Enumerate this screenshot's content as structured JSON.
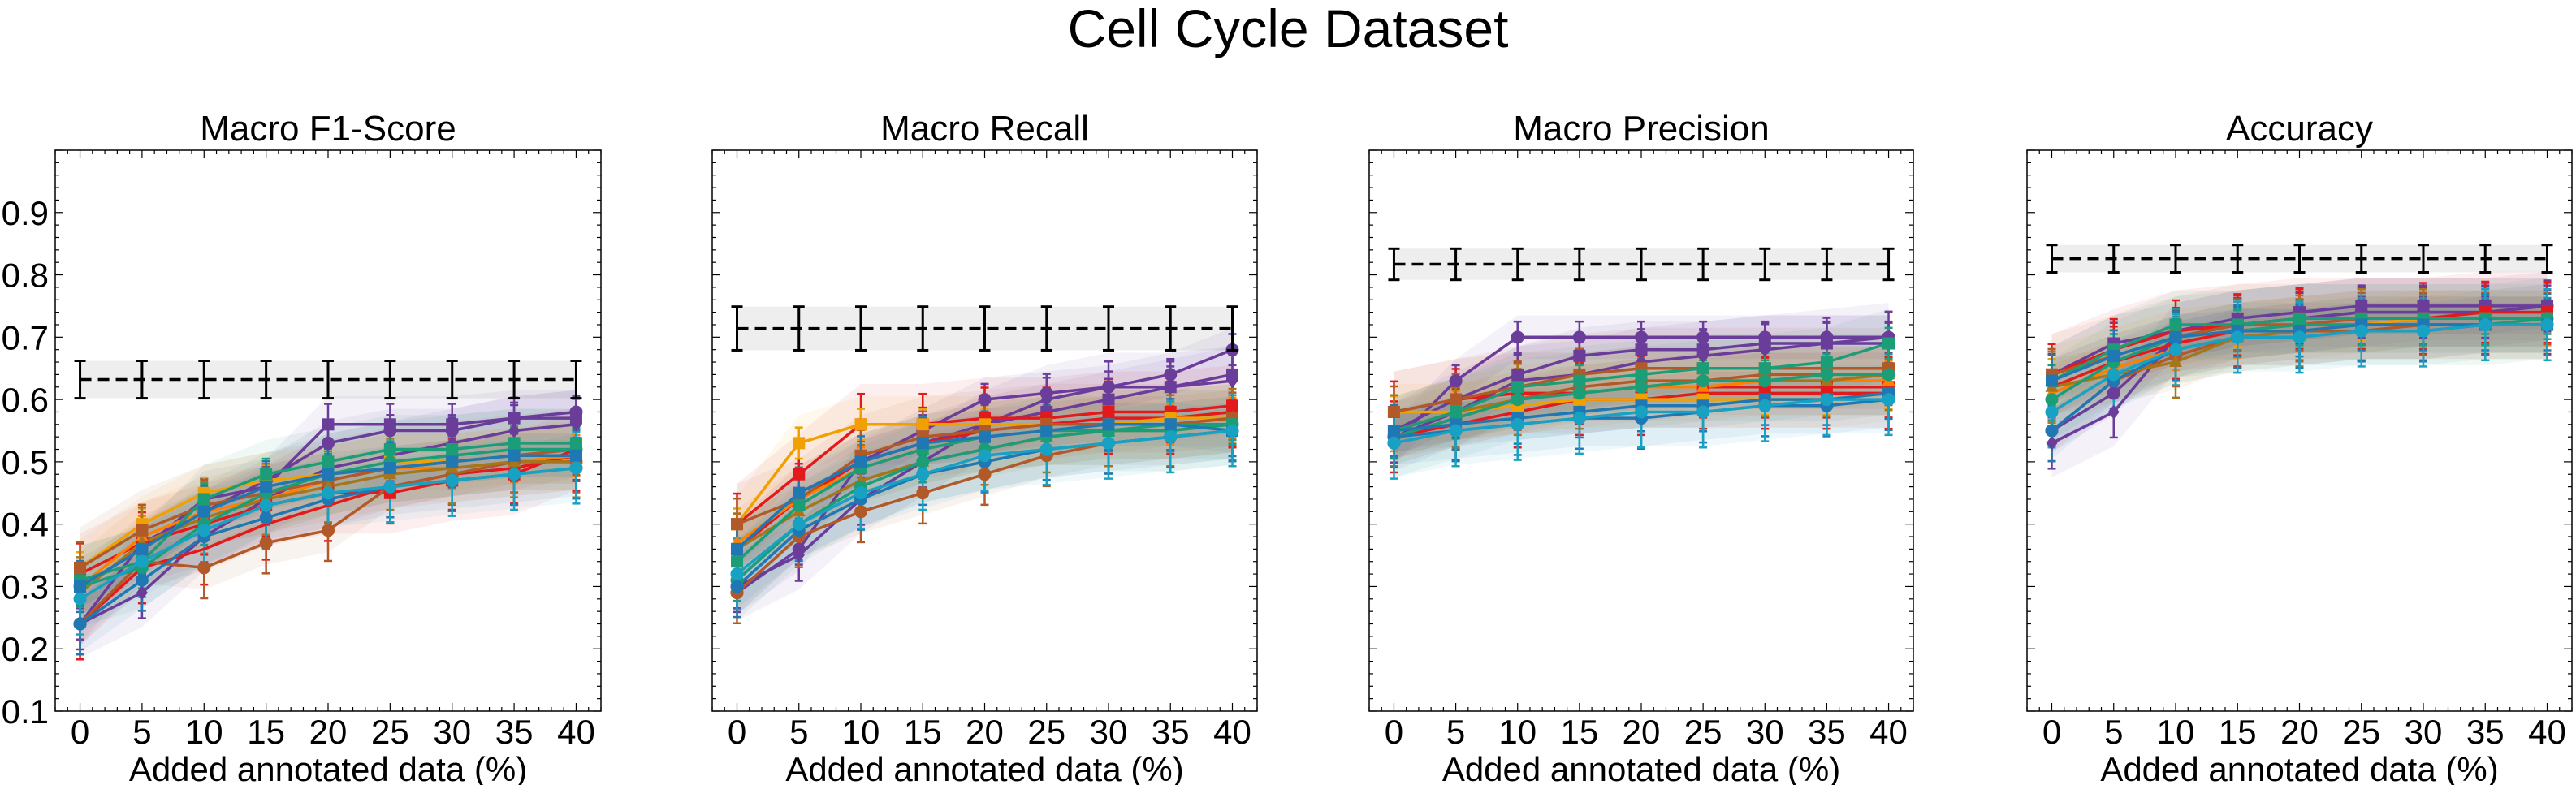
{
  "figure": {
    "title": "Cell Cycle Dataset"
  },
  "chart_data": [
    {
      "type": "line",
      "title": "Macro F1-Score",
      "xlabel": "Added annotated data (%)",
      "ylabel": "",
      "x": [
        0,
        5,
        10,
        15,
        20,
        25,
        30,
        35,
        40
      ],
      "ylim": [
        0.1,
        1.0
      ],
      "yticks": [
        "0.1",
        "0.2",
        "0.3",
        "0.4",
        "0.5",
        "0.6",
        "0.7",
        "0.8",
        "0.9"
      ],
      "show_yticklabels": true,
      "grid": false,
      "baseline": {
        "value": 0.632,
        "err": 0.03
      },
      "series": [
        {
          "color": "#6a3d9a",
          "marker": "circle",
          "values": [
            0.24,
            0.37,
            0.42,
            0.47,
            0.53,
            0.55,
            0.55,
            0.57,
            0.58
          ]
        },
        {
          "color": "#6a3d9a",
          "marker": "square",
          "values": [
            0.3,
            0.36,
            0.44,
            0.46,
            0.56,
            0.56,
            0.56,
            0.57,
            0.57
          ]
        },
        {
          "color": "#6a3d9a",
          "marker": "diamond",
          "values": [
            0.24,
            0.29,
            0.38,
            0.44,
            0.49,
            0.51,
            0.53,
            0.55,
            0.56
          ]
        },
        {
          "color": "#e31a1c",
          "marker": "square",
          "values": [
            0.32,
            0.37,
            0.4,
            0.43,
            0.45,
            0.45,
            0.47,
            0.48,
            0.52
          ]
        },
        {
          "color": "#e31a1c",
          "marker": "none",
          "values": [
            0.24,
            0.33,
            0.36,
            0.4,
            0.43,
            0.46,
            0.48,
            0.49,
            0.51
          ]
        },
        {
          "color": "#f0a000",
          "marker": "square",
          "values": [
            0.33,
            0.4,
            0.45,
            0.47,
            0.48,
            0.5,
            0.5,
            0.51,
            0.51
          ]
        },
        {
          "color": "#ff7f00",
          "marker": "triangle",
          "values": [
            0.3,
            0.38,
            0.42,
            0.44,
            0.47,
            0.49,
            0.49,
            0.5,
            0.51
          ]
        },
        {
          "color": "#b15928",
          "marker": "square",
          "values": [
            0.33,
            0.39,
            0.43,
            0.45,
            0.47,
            0.49,
            0.5,
            0.51,
            0.52
          ]
        },
        {
          "color": "#b15928",
          "marker": "circle",
          "values": [
            0.24,
            0.34,
            0.33,
            0.37,
            0.39,
            0.46,
            0.48,
            0.5,
            0.5
          ]
        },
        {
          "color": "#a6761d",
          "marker": "triangle",
          "values": [
            0.29,
            0.37,
            0.41,
            0.44,
            0.46,
            0.48,
            0.49,
            0.5,
            0.5
          ]
        },
        {
          "color": "#1b9e77",
          "marker": "square",
          "values": [
            0.31,
            0.34,
            0.44,
            0.48,
            0.5,
            0.52,
            0.52,
            0.53,
            0.53
          ]
        },
        {
          "color": "#1b9e77",
          "marker": "circle",
          "values": [
            0.3,
            0.33,
            0.4,
            0.45,
            0.48,
            0.5,
            0.51,
            0.52,
            0.52
          ]
        },
        {
          "color": "#1f78b4",
          "marker": "square",
          "values": [
            0.3,
            0.36,
            0.42,
            0.46,
            0.48,
            0.49,
            0.5,
            0.51,
            0.51
          ]
        },
        {
          "color": "#1f78b4",
          "marker": "circle",
          "values": [
            0.24,
            0.31,
            0.38,
            0.41,
            0.44,
            0.46,
            0.47,
            0.48,
            0.49
          ]
        },
        {
          "color": "#17a2c4",
          "marker": "circle",
          "values": [
            0.28,
            0.34,
            0.39,
            0.43,
            0.45,
            0.46,
            0.47,
            0.48,
            0.49
          ]
        }
      ]
    },
    {
      "type": "line",
      "title": "Macro Recall",
      "xlabel": "Added annotated data (%)",
      "ylabel": "",
      "x": [
        0,
        5,
        10,
        15,
        20,
        25,
        30,
        35,
        40
      ],
      "ylim": [
        0.1,
        1.0
      ],
      "yticks": [
        "0.1",
        "0.2",
        "0.3",
        "0.4",
        "0.5",
        "0.6",
        "0.7",
        "0.8",
        "0.9"
      ],
      "show_yticklabels": false,
      "grid": false,
      "baseline": {
        "value": 0.714,
        "err": 0.035
      },
      "series": [
        {
          "color": "#6a3d9a",
          "marker": "circle",
          "values": [
            0.29,
            0.36,
            0.5,
            0.55,
            0.6,
            0.61,
            0.62,
            0.64,
            0.68
          ]
        },
        {
          "color": "#6a3d9a",
          "marker": "square",
          "values": [
            0.36,
            0.45,
            0.5,
            0.53,
            0.56,
            0.58,
            0.6,
            0.62,
            0.64
          ]
        },
        {
          "color": "#6a3d9a",
          "marker": "diamond",
          "values": [
            0.3,
            0.35,
            0.44,
            0.5,
            0.56,
            0.6,
            0.62,
            0.62,
            0.63
          ]
        },
        {
          "color": "#e31a1c",
          "marker": "square",
          "values": [
            0.4,
            0.48,
            0.56,
            0.56,
            0.57,
            0.57,
            0.58,
            0.58,
            0.59
          ]
        },
        {
          "color": "#e31a1c",
          "marker": "none",
          "values": [
            0.36,
            0.44,
            0.5,
            0.53,
            0.55,
            0.56,
            0.57,
            0.57,
            0.58
          ]
        },
        {
          "color": "#f0a000",
          "marker": "square",
          "values": [
            0.4,
            0.53,
            0.56,
            0.56,
            0.56,
            0.56,
            0.56,
            0.57,
            0.57
          ]
        },
        {
          "color": "#ff7f00",
          "marker": "triangle",
          "values": [
            0.37,
            0.44,
            0.49,
            0.52,
            0.54,
            0.55,
            0.56,
            0.56,
            0.57
          ]
        },
        {
          "color": "#b15928",
          "marker": "square",
          "values": [
            0.4,
            0.44,
            0.51,
            0.54,
            0.55,
            0.56,
            0.56,
            0.56,
            0.57
          ]
        },
        {
          "color": "#b15928",
          "marker": "circle",
          "values": [
            0.29,
            0.38,
            0.42,
            0.45,
            0.48,
            0.51,
            0.53,
            0.54,
            0.55
          ]
        },
        {
          "color": "#a6761d",
          "marker": "triangle",
          "values": [
            0.36,
            0.42,
            0.47,
            0.5,
            0.52,
            0.54,
            0.55,
            0.55,
            0.56
          ]
        },
        {
          "color": "#1b9e77",
          "marker": "square",
          "values": [
            0.34,
            0.43,
            0.49,
            0.52,
            0.54,
            0.55,
            0.55,
            0.56,
            0.56
          ]
        },
        {
          "color": "#1b9e77",
          "marker": "circle",
          "values": [
            0.31,
            0.4,
            0.46,
            0.5,
            0.52,
            0.54,
            0.55,
            0.55,
            0.56
          ]
        },
        {
          "color": "#1f78b4",
          "marker": "square",
          "values": [
            0.36,
            0.45,
            0.5,
            0.53,
            0.54,
            0.55,
            0.56,
            0.56,
            0.55
          ]
        },
        {
          "color": "#1f78b4",
          "marker": "circle",
          "values": [
            0.3,
            0.39,
            0.44,
            0.48,
            0.5,
            0.52,
            0.53,
            0.54,
            0.55
          ]
        },
        {
          "color": "#17a2c4",
          "marker": "circle",
          "values": [
            0.32,
            0.4,
            0.45,
            0.48,
            0.51,
            0.52,
            0.53,
            0.54,
            0.55
          ]
        }
      ]
    },
    {
      "type": "line",
      "title": "Macro Precision",
      "xlabel": "Added annotated data (%)",
      "ylabel": "",
      "x": [
        0,
        5,
        10,
        15,
        20,
        25,
        30,
        35,
        40
      ],
      "ylim": [
        0.1,
        1.0
      ],
      "yticks": [
        "0.1",
        "0.2",
        "0.3",
        "0.4",
        "0.5",
        "0.6",
        "0.7",
        "0.8",
        "0.9"
      ],
      "show_yticklabels": false,
      "grid": false,
      "baseline": {
        "value": 0.817,
        "err": 0.025
      },
      "series": [
        {
          "color": "#6a3d9a",
          "marker": "circle",
          "values": [
            0.53,
            0.63,
            0.7,
            0.7,
            0.7,
            0.7,
            0.7,
            0.7,
            0.7
          ]
        },
        {
          "color": "#6a3d9a",
          "marker": "square",
          "values": [
            0.55,
            0.6,
            0.64,
            0.67,
            0.68,
            0.68,
            0.69,
            0.69,
            0.69
          ]
        },
        {
          "color": "#6a3d9a",
          "marker": "diamond",
          "values": [
            0.54,
            0.58,
            0.63,
            0.64,
            0.66,
            0.67,
            0.68,
            0.69,
            0.7
          ]
        },
        {
          "color": "#e31a1c",
          "marker": "square",
          "values": [
            0.58,
            0.6,
            0.61,
            0.61,
            0.62,
            0.62,
            0.62,
            0.62,
            0.62
          ]
        },
        {
          "color": "#e31a1c",
          "marker": "none",
          "values": [
            0.54,
            0.56,
            0.58,
            0.6,
            0.6,
            0.61,
            0.61,
            0.61,
            0.61
          ]
        },
        {
          "color": "#f0a000",
          "marker": "square",
          "values": [
            0.58,
            0.58,
            0.59,
            0.6,
            0.6,
            0.6,
            0.6,
            0.6,
            0.61
          ]
        },
        {
          "color": "#ff7f00",
          "marker": "triangle",
          "values": [
            0.55,
            0.58,
            0.6,
            0.61,
            0.62,
            0.62,
            0.63,
            0.63,
            0.63
          ]
        },
        {
          "color": "#b15928",
          "marker": "square",
          "values": [
            0.58,
            0.6,
            0.62,
            0.64,
            0.65,
            0.65,
            0.65,
            0.65,
            0.65
          ]
        },
        {
          "color": "#b15928",
          "marker": "circle",
          "values": [
            0.54,
            0.57,
            0.6,
            0.62,
            0.63,
            0.63,
            0.64,
            0.64,
            0.64
          ]
        },
        {
          "color": "#a6761d",
          "marker": "triangle",
          "values": [
            0.55,
            0.58,
            0.6,
            0.61,
            0.62,
            0.63,
            0.63,
            0.63,
            0.64
          ]
        },
        {
          "color": "#1b9e77",
          "marker": "square",
          "values": [
            0.55,
            0.58,
            0.62,
            0.63,
            0.64,
            0.65,
            0.65,
            0.66,
            0.69
          ]
        },
        {
          "color": "#1b9e77",
          "marker": "circle",
          "values": [
            0.54,
            0.57,
            0.6,
            0.61,
            0.62,
            0.63,
            0.63,
            0.64,
            0.64
          ]
        },
        {
          "color": "#1f78b4",
          "marker": "square",
          "values": [
            0.55,
            0.56,
            0.57,
            0.58,
            0.59,
            0.59,
            0.6,
            0.6,
            0.61
          ]
        },
        {
          "color": "#1f78b4",
          "marker": "circle",
          "values": [
            0.54,
            0.55,
            0.56,
            0.57,
            0.57,
            0.58,
            0.59,
            0.59,
            0.6
          ]
        },
        {
          "color": "#17a2c4",
          "marker": "circle",
          "values": [
            0.53,
            0.55,
            0.56,
            0.57,
            0.58,
            0.58,
            0.59,
            0.6,
            0.6
          ]
        }
      ]
    },
    {
      "type": "line",
      "title": "Accuracy",
      "xlabel": "Added annotated data (%)",
      "ylabel": "",
      "x": [
        0,
        5,
        10,
        15,
        20,
        25,
        30,
        35,
        40
      ],
      "ylim": [
        0.1,
        1.0
      ],
      "yticks": [
        "0.1",
        "0.2",
        "0.3",
        "0.4",
        "0.5",
        "0.6",
        "0.7",
        "0.8",
        "0.9"
      ],
      "show_yticklabels": false,
      "grid": false,
      "baseline": {
        "value": 0.826,
        "err": 0.022
      },
      "series": [
        {
          "color": "#6a3d9a",
          "marker": "circle",
          "values": [
            0.55,
            0.61,
            0.7,
            0.72,
            0.73,
            0.74,
            0.74,
            0.74,
            0.75
          ]
        },
        {
          "color": "#6a3d9a",
          "marker": "square",
          "values": [
            0.64,
            0.69,
            0.71,
            0.73,
            0.74,
            0.75,
            0.75,
            0.75,
            0.75
          ]
        },
        {
          "color": "#6a3d9a",
          "marker": "diamond",
          "values": [
            0.53,
            0.58,
            0.7,
            0.72,
            0.73,
            0.74,
            0.74,
            0.74,
            0.75
          ]
        },
        {
          "color": "#e31a1c",
          "marker": "square",
          "values": [
            0.64,
            0.68,
            0.71,
            0.72,
            0.73,
            0.73,
            0.73,
            0.74,
            0.74
          ]
        },
        {
          "color": "#e31a1c",
          "marker": "none",
          "values": [
            0.62,
            0.66,
            0.69,
            0.71,
            0.72,
            0.72,
            0.73,
            0.73,
            0.73
          ]
        },
        {
          "color": "#f0a000",
          "marker": "square",
          "values": [
            0.64,
            0.67,
            0.7,
            0.71,
            0.72,
            0.72,
            0.73,
            0.73,
            0.73
          ]
        },
        {
          "color": "#ff7f00",
          "marker": "triangle",
          "values": [
            0.61,
            0.65,
            0.68,
            0.7,
            0.71,
            0.72,
            0.72,
            0.72,
            0.72
          ]
        },
        {
          "color": "#b15928",
          "marker": "square",
          "values": [
            0.64,
            0.67,
            0.7,
            0.72,
            0.72,
            0.73,
            0.73,
            0.73,
            0.73
          ]
        },
        {
          "color": "#b15928",
          "marker": "circle",
          "values": [
            0.55,
            0.63,
            0.67,
            0.7,
            0.71,
            0.71,
            0.72,
            0.72,
            0.72
          ]
        },
        {
          "color": "#a6761d",
          "marker": "triangle",
          "values": [
            0.62,
            0.64,
            0.66,
            0.7,
            0.71,
            0.72,
            0.72,
            0.72,
            0.72
          ]
        },
        {
          "color": "#1b9e77",
          "marker": "square",
          "values": [
            0.63,
            0.68,
            0.72,
            0.72,
            0.73,
            0.73,
            0.73,
            0.73,
            0.73
          ]
        },
        {
          "color": "#1b9e77",
          "marker": "circle",
          "values": [
            0.6,
            0.66,
            0.7,
            0.71,
            0.72,
            0.72,
            0.72,
            0.72,
            0.73
          ]
        },
        {
          "color": "#1f78b4",
          "marker": "square",
          "values": [
            0.63,
            0.67,
            0.7,
            0.71,
            0.71,
            0.72,
            0.72,
            0.72,
            0.72
          ]
        },
        {
          "color": "#1f78b4",
          "marker": "circle",
          "values": [
            0.55,
            0.63,
            0.68,
            0.7,
            0.7,
            0.71,
            0.71,
            0.72,
            0.72
          ]
        },
        {
          "color": "#17a2c4",
          "marker": "circle",
          "values": [
            0.58,
            0.64,
            0.68,
            0.7,
            0.7,
            0.71,
            0.71,
            0.72,
            0.72
          ]
        }
      ]
    }
  ]
}
